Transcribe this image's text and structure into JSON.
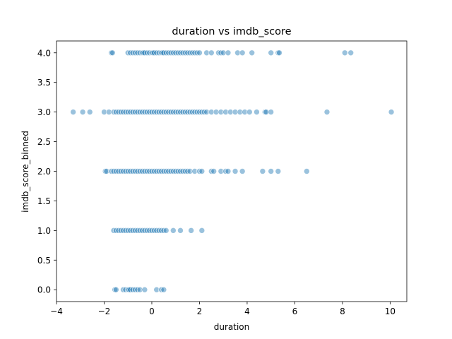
{
  "chart_data": {
    "type": "scatter",
    "title": "duration vs imdb_score",
    "xlabel": "duration",
    "ylabel": "imdb_score_binned",
    "xlim": [
      -4,
      10.7
    ],
    "ylim": [
      -0.2,
      4.2
    ],
    "xticks": [
      -4,
      -2,
      0,
      2,
      4,
      6,
      8,
      10
    ],
    "xtick_labels": [
      "−4",
      "−2",
      "0",
      "2",
      "4",
      "6",
      "8",
      "10"
    ],
    "yticks": [
      0.0,
      0.5,
      1.0,
      1.5,
      2.0,
      2.5,
      3.0,
      3.5,
      4.0
    ],
    "ytick_labels": [
      "0.0",
      "0.5",
      "1.0",
      "1.5",
      "2.0",
      "2.5",
      "3.0",
      "3.5",
      "4.0"
    ],
    "grid": false,
    "marker_color": "#1f77b4",
    "marker_edge_color": "#ffffff",
    "marker_alpha": 0.45,
    "series": [
      {
        "x": [
          -1.7,
          -1.65,
          -1.0,
          -0.9,
          -0.8,
          -0.7,
          -0.6,
          -0.5,
          -0.4,
          -0.35,
          -0.3,
          -0.2,
          -0.1,
          0.0,
          0.05,
          0.1,
          0.2,
          0.3,
          0.4,
          0.45,
          0.5,
          0.6,
          0.7,
          0.8,
          0.9,
          1.0,
          1.1,
          1.2,
          1.3,
          1.4,
          1.5,
          1.6,
          1.7,
          1.8,
          1.9,
          2.0,
          2.3,
          2.5,
          2.8,
          2.9,
          3.0,
          3.2,
          3.6,
          3.8,
          4.2,
          5.0,
          5.3,
          5.35,
          8.1,
          8.35
        ],
        "y": [
          4,
          4,
          4,
          4,
          4,
          4,
          4,
          4,
          4,
          4,
          4,
          4,
          4,
          4,
          4,
          4,
          4,
          4,
          4,
          4,
          4,
          4,
          4,
          4,
          4,
          4,
          4,
          4,
          4,
          4,
          4,
          4,
          4,
          4,
          4,
          4,
          4,
          4,
          4,
          4,
          4,
          4,
          4,
          4,
          4,
          4,
          4,
          4,
          4,
          4
        ]
      },
      {
        "x": [
          -3.3,
          -2.9,
          -2.6,
          -2.0,
          -1.8,
          -1.6,
          -1.5,
          -1.4,
          -1.3,
          -1.2,
          -1.1,
          -1.0,
          -0.9,
          -0.8,
          -0.7,
          -0.6,
          -0.5,
          -0.4,
          -0.3,
          -0.2,
          -0.1,
          0.0,
          0.1,
          0.2,
          0.3,
          0.4,
          0.5,
          0.6,
          0.7,
          0.8,
          0.9,
          1.0,
          1.1,
          1.2,
          1.3,
          1.4,
          1.5,
          1.6,
          1.7,
          1.8,
          1.9,
          2.0,
          2.1,
          2.2,
          2.3,
          2.5,
          2.7,
          2.9,
          3.1,
          3.3,
          3.5,
          3.7,
          3.9,
          4.1,
          4.4,
          4.75,
          4.8,
          5.0,
          7.35,
          10.05
        ],
        "y": [
          3,
          3,
          3,
          3,
          3,
          3,
          3,
          3,
          3,
          3,
          3,
          3,
          3,
          3,
          3,
          3,
          3,
          3,
          3,
          3,
          3,
          3,
          3,
          3,
          3,
          3,
          3,
          3,
          3,
          3,
          3,
          3,
          3,
          3,
          3,
          3,
          3,
          3,
          3,
          3,
          3,
          3,
          3,
          3,
          3,
          3,
          3,
          3,
          3,
          3,
          3,
          3,
          3,
          3,
          3,
          3,
          3,
          3,
          3,
          3
        ]
      },
      {
        "x": [
          -1.95,
          -1.9,
          -1.7,
          -1.6,
          -1.5,
          -1.4,
          -1.3,
          -1.2,
          -1.1,
          -1.0,
          -0.9,
          -0.8,
          -0.7,
          -0.6,
          -0.5,
          -0.4,
          -0.3,
          -0.2,
          -0.1,
          0.0,
          0.1,
          0.2,
          0.3,
          0.4,
          0.5,
          0.6,
          0.7,
          0.8,
          0.9,
          1.0,
          1.1,
          1.2,
          1.3,
          1.4,
          1.5,
          1.6,
          1.8,
          2.0,
          2.1,
          2.5,
          2.6,
          2.9,
          3.1,
          3.2,
          3.5,
          3.8,
          4.65,
          5.0,
          5.3,
          6.5
        ],
        "y": [
          2,
          2,
          2,
          2,
          2,
          2,
          2,
          2,
          2,
          2,
          2,
          2,
          2,
          2,
          2,
          2,
          2,
          2,
          2,
          2,
          2,
          2,
          2,
          2,
          2,
          2,
          2,
          2,
          2,
          2,
          2,
          2,
          2,
          2,
          2,
          2,
          2,
          2,
          2,
          2,
          2,
          2,
          2,
          2,
          2,
          2,
          2,
          2,
          2,
          2
        ]
      },
      {
        "x": [
          -1.6,
          -1.5,
          -1.4,
          -1.3,
          -1.2,
          -1.1,
          -1.0,
          -0.9,
          -0.8,
          -0.7,
          -0.6,
          -0.5,
          -0.4,
          -0.3,
          -0.2,
          -0.1,
          0.0,
          0.1,
          0.2,
          0.3,
          0.4,
          0.5,
          0.6,
          0.9,
          1.2,
          1.65,
          2.1
        ],
        "y": [
          1,
          1,
          1,
          1,
          1,
          1,
          1,
          1,
          1,
          1,
          1,
          1,
          1,
          1,
          1,
          1,
          1,
          1,
          1,
          1,
          1,
          1,
          1,
          1,
          1,
          1,
          1
        ]
      },
      {
        "x": [
          -1.55,
          -1.5,
          -1.2,
          -1.1,
          -1.0,
          -0.95,
          -0.9,
          -0.8,
          -0.7,
          -0.6,
          -0.5,
          -0.3,
          0.2,
          0.4,
          0.5
        ],
        "y": [
          0,
          0,
          0,
          0,
          0,
          0,
          0,
          0,
          0,
          0,
          0,
          0,
          0,
          0,
          0
        ]
      }
    ]
  }
}
